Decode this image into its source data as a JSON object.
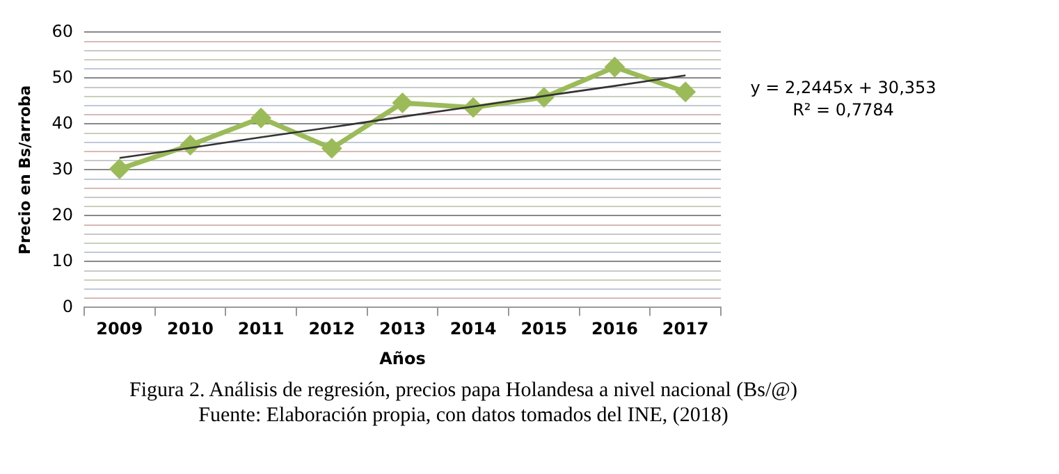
{
  "chart_data": {
    "type": "line",
    "xlabel": "Años",
    "ylabel": "Precio en Bs/arroba",
    "categories": [
      "2009",
      "2010",
      "2011",
      "2012",
      "2013",
      "2014",
      "2015",
      "2016",
      "2017"
    ],
    "series": [
      {
        "color": "#9bbb59",
        "values": [
          30.2,
          35.4,
          41.3,
          34.7,
          44.6,
          43.6,
          45.8,
          52.4,
          47.0
        ]
      },
      {
        "color": "#333333",
        "marker": "none",
        "values": [
          32.6,
          34.8,
          37.1,
          39.3,
          41.6,
          43.8,
          46.1,
          48.3,
          50.6
        ]
      }
    ],
    "ylim": [
      0,
      60
    ],
    "yticks": [
      0,
      {
        "value": 2,
        "label": null
      },
      {
        "value": 4,
        "label": null
      },
      {
        "value": 6,
        "label": null
      },
      {
        "value": 8,
        "label": null
      },
      10,
      {
        "value": 12,
        "label": null
      },
      {
        "value": 14,
        "label": null
      },
      {
        "value": 16,
        "label": null
      },
      {
        "value": 18,
        "label": null
      },
      20,
      {
        "value": 22,
        "label": null
      },
      {
        "value": 24,
        "label": null
      },
      {
        "value": 26,
        "label": null
      },
      {
        "value": 28,
        "label": null
      },
      30,
      {
        "value": 32,
        "label": null
      },
      {
        "value": 34,
        "label": null
      },
      {
        "value": 36,
        "label": null
      },
      {
        "value": 38,
        "label": null
      },
      40,
      {
        "value": 42,
        "label": null
      },
      {
        "value": 44,
        "label": null
      },
      {
        "value": 46,
        "label": null
      },
      {
        "value": 48,
        "label": null
      },
      50,
      {
        "value": 52,
        "label": null
      },
      {
        "value": 54,
        "label": null
      },
      {
        "value": 56,
        "label": null
      },
      {
        "value": 58,
        "label": null
      },
      60
    ],
    "grid": "y",
    "legend": false,
    "marker": "diamond",
    "line_style": "solid",
    "annotations": [
      "y = 2,2445x + 30,353",
      "R² = 0,7784",
      "Figura 2. Análisis de regresión, precios papa Holandesa a nivel nacional (Bs/@)",
      "Fuente: Elaboración propia, con datos tomados del INE, (2018)"
    ]
  }
}
